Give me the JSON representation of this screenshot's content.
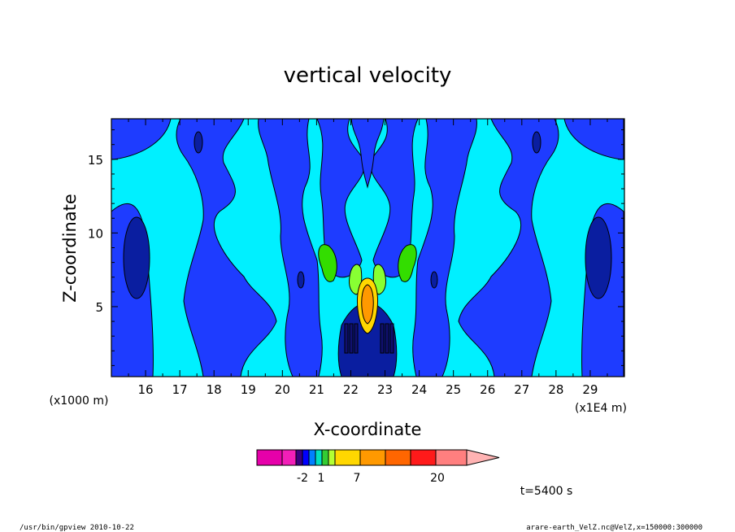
{
  "chart_data": {
    "type": "heatmap",
    "title": "vertical velocity",
    "xlabel": "X-coordinate",
    "ylabel": "Z-coordinate",
    "x_unit_left": "(x1000 m)",
    "x_unit_right": "(x1E4 m)",
    "xlim": [
      15.0,
      30.0
    ],
    "ylim": [
      0.25,
      17.75
    ],
    "x_ticks": [
      "16",
      "17",
      "18",
      "19",
      "20",
      "21",
      "22",
      "23",
      "24",
      "25",
      "26",
      "27",
      "28",
      "29"
    ],
    "x_tick_values": [
      16,
      17,
      18,
      19,
      20,
      21,
      22,
      23,
      24,
      25,
      26,
      27,
      28,
      29
    ],
    "y_ticks": [
      "5",
      "10",
      "15"
    ],
    "y_tick_values": [
      5,
      10,
      15
    ],
    "colors": {
      "lowest": "#1a1a9e",
      "dark_blue": "#0a1ea0",
      "blue": "#1e3cff",
      "cyan": "#00f0ff",
      "light_green": "#66ff33",
      "green": "#33cc00",
      "yellow": "#ffd700",
      "orange": "#ff9900"
    },
    "colorbar": {
      "labels": [
        "-2",
        "1",
        "7",
        "20"
      ],
      "colors": [
        "#e600aa",
        "#f21fb8",
        "#3a0080",
        "#0000ff",
        "#0080ff",
        "#00e0c0",
        "#33cc33",
        "#b3ff33",
        "#ffd700",
        "#ff9900",
        "#ff6600",
        "#ff1a1a",
        "#ff7f7f",
        "#ffb3b3"
      ]
    },
    "time_label": "t=5400 s"
  },
  "footer": {
    "program": "/usr/bin/gpview   2010-10-22",
    "source": "arare-earth_VelZ.nc@VelZ,x=150000:300000"
  }
}
